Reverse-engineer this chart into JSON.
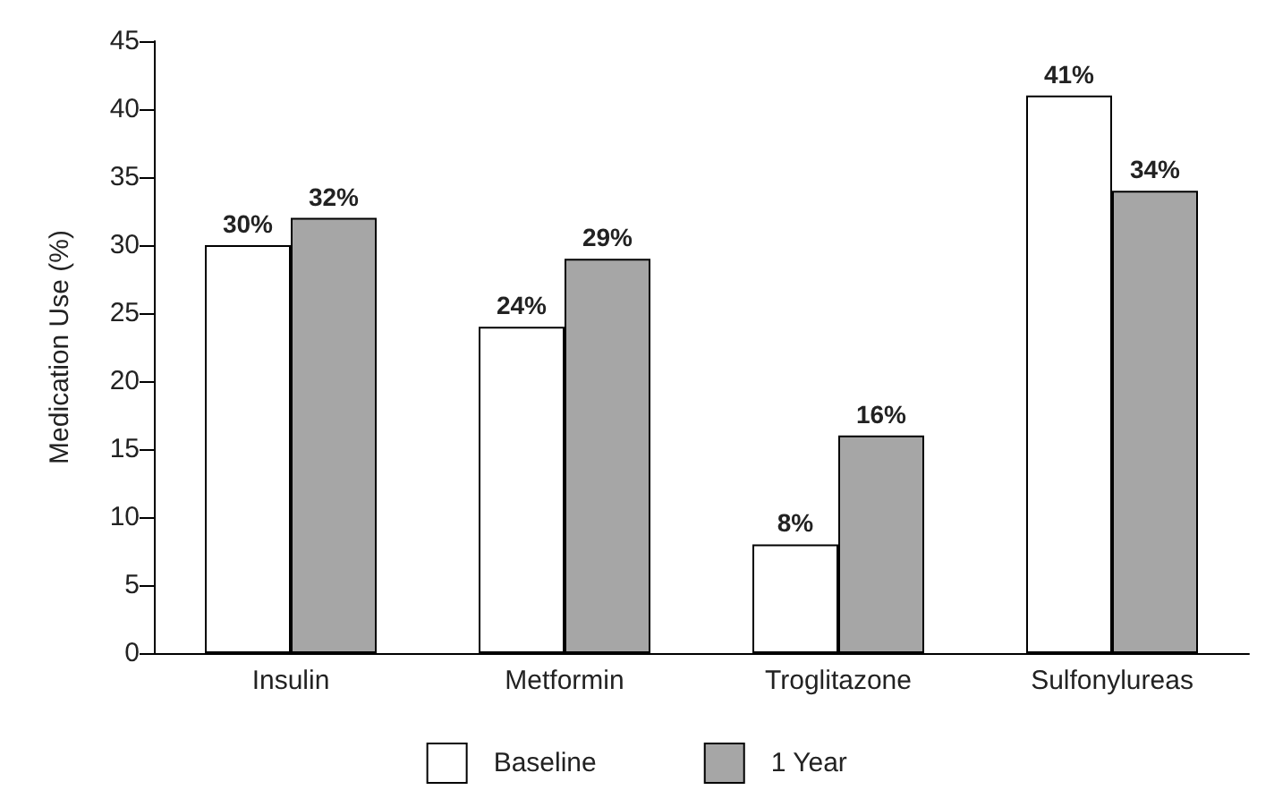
{
  "chart_data": {
    "type": "bar",
    "ylabel": "Medication Use (%)",
    "categories": [
      "Insulin",
      "Metformin",
      "Troglitazone",
      "Sulfonylureas"
    ],
    "series": [
      {
        "name": "Baseline",
        "color": "#ffffff",
        "values": [
          30,
          24,
          8,
          41
        ],
        "value_labels": [
          "30%",
          "24%",
          "8%",
          "41%"
        ]
      },
      {
        "name": "1 Year",
        "color": "#a6a6a6",
        "values": [
          32,
          29,
          16,
          34
        ],
        "value_labels": [
          "32%",
          "29%",
          "16%",
          "34%"
        ]
      }
    ],
    "ylim": [
      0,
      45
    ],
    "yticks": [
      0,
      5,
      10,
      15,
      20,
      25,
      30,
      35,
      40,
      45
    ],
    "grid": false,
    "legend": "bottom"
  }
}
